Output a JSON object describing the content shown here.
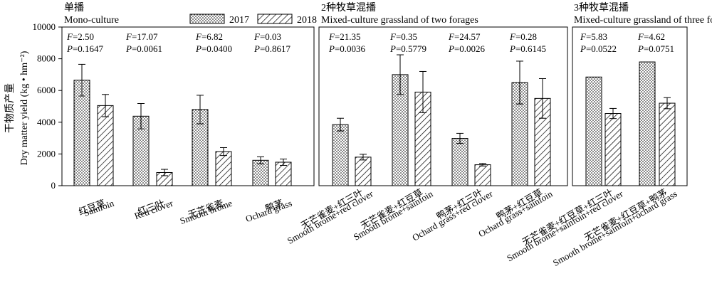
{
  "chart_data": {
    "type": "bar",
    "ylabel_cn": "干物质产量",
    "ylabel_en": "Dry matter yield (kg • hm⁻²)",
    "ylim": [
      0,
      10000
    ],
    "yticks": [
      0,
      2000,
      4000,
      6000,
      8000,
      10000
    ],
    "legend": [
      "2017",
      "2018"
    ],
    "legend_placement": "top",
    "error_bars": true,
    "panels": [
      {
        "title_cn": "单播",
        "title_en": "Mono-culture",
        "groups": [
          {
            "label_cn": "红豆草",
            "label_en": "Sainfoin",
            "values": [
              6650,
              5050
            ],
            "errors": [
              1000,
              700
            ],
            "F": "2.50",
            "P": "0.1647"
          },
          {
            "label_cn": "红三叶",
            "label_en": "Red clover",
            "values": [
              4380,
              830
            ],
            "errors": [
              800,
              200
            ],
            "F": "17.07",
            "P": "0.0061"
          },
          {
            "label_cn": "无芒雀麦",
            "label_en": "Smooth brome",
            "values": [
              4800,
              2150
            ],
            "errors": [
              900,
              250
            ],
            "F": "6.82",
            "P": "0.0400"
          },
          {
            "label_cn": "鸭茅",
            "label_en": "Ochard grass",
            "values": [
              1600,
              1480
            ],
            "errors": [
              220,
              200
            ],
            "F": "0.03",
            "P": "0.8617"
          }
        ]
      },
      {
        "title_cn": "2种牧草混播",
        "title_en": "Mixed-culture grassland of two forages",
        "groups": [
          {
            "label_cn": "无芒雀麦+红三叶",
            "label_en": "Smooth brome+red clover",
            "values": [
              3850,
              1800
            ],
            "errors": [
              400,
              180
            ],
            "F": "21.35",
            "P": "0.0036"
          },
          {
            "label_cn": "无芒雀麦+红豆草",
            "label_en": "Smooth brome+sainfoin",
            "values": [
              7000,
              5900
            ],
            "errors": [
              1250,
              1300
            ],
            "F": "0.35",
            "P": "0.5779"
          },
          {
            "label_cn": "鸭茅+红三叶",
            "label_en": "Ochard grass+red clover",
            "values": [
              2980,
              1320
            ],
            "errors": [
              320,
              80
            ],
            "F": "24.57",
            "P": "0.0026"
          },
          {
            "label_cn": "鸭茅+红豆草",
            "label_en": "Ochard grass+sainfoin",
            "values": [
              6500,
              5500
            ],
            "errors": [
              1350,
              1250
            ],
            "F": "0.28",
            "P": "0.6145"
          }
        ]
      },
      {
        "title_cn": "3种牧草混播",
        "title_en": "Mixed-culture grassland of three forages",
        "groups": [
          {
            "label_cn": "无芒雀麦+红豆草+红三叶",
            "label_en": "Smooth brome+sainfoin+red clover",
            "values": [
              6850,
              4550
            ],
            "errors": [
              0,
              320
            ],
            "F": "5.83",
            "P": "0.0522"
          },
          {
            "label_cn": "无芒雀麦+红豆草+鸭茅",
            "label_en": "Smooth brome+sainfoin+ochard grass",
            "values": [
              7800,
              5200
            ],
            "errors": [
              0,
              350
            ],
            "F": "4.62",
            "P": "0.0751"
          }
        ]
      }
    ]
  }
}
